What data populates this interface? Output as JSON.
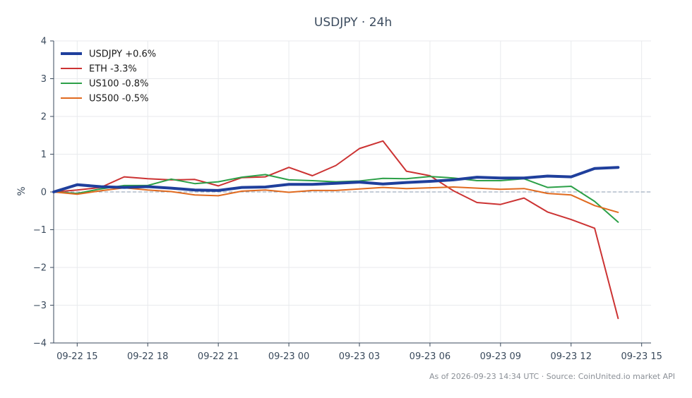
{
  "chart_data": {
    "type": "line",
    "title": "USDJPY · 24h",
    "ylabel": "%",
    "xlabel": "",
    "ylim": [
      -4,
      4
    ],
    "yticks": [
      4,
      3,
      2,
      1,
      0,
      -1,
      -2,
      -3,
      -4
    ],
    "ytick_labels": [
      "4",
      "3",
      "2",
      "1",
      "0",
      "−1",
      "−2",
      "−3",
      "−4"
    ],
    "xlim": [
      14.0,
      39.4
    ],
    "xticks": [
      15,
      18,
      21,
      24,
      27,
      30,
      33,
      36,
      39
    ],
    "xtick_labels": [
      "09-22 15",
      "09-22 18",
      "09-22 21",
      "09-23 00",
      "09-23 03",
      "09-23 06",
      "09-23 09",
      "09-23 12",
      "09-23 15"
    ],
    "grid": true,
    "zero_line": true,
    "legend_position": "top-left",
    "x": [
      14.0,
      15.0,
      16.0,
      17.0,
      18.0,
      19.0,
      20.0,
      21.0,
      22.0,
      23.0,
      24.0,
      25.0,
      26.0,
      27.0,
      28.0,
      29.0,
      30.0,
      31.0,
      32.0,
      33.0,
      34.0,
      35.0,
      36.0,
      37.0,
      38.0
    ],
    "series": [
      {
        "name": "USDJPY +0.6%",
        "color": "#1f3f9c",
        "width": 4,
        "values": [
          0.0,
          0.19,
          0.14,
          0.12,
          0.14,
          0.1,
          0.05,
          0.04,
          0.12,
          0.13,
          0.2,
          0.2,
          0.23,
          0.26,
          0.21,
          0.25,
          0.28,
          0.32,
          0.39,
          0.37,
          0.37,
          0.42,
          0.4,
          0.62,
          0.65
        ]
      },
      {
        "name": "ETH -3.3%",
        "color": "#cc3333",
        "width": 2,
        "values": [
          0.0,
          0.05,
          0.12,
          0.4,
          0.35,
          0.32,
          0.33,
          0.16,
          0.38,
          0.4,
          0.65,
          0.43,
          0.7,
          1.15,
          1.35,
          0.55,
          0.43,
          0.03,
          -0.28,
          -0.33,
          -0.16,
          -0.53,
          -0.73,
          -0.96,
          -3.35
        ]
      },
      {
        "name": "US100 -0.8%",
        "color": "#2ca048",
        "width": 2,
        "values": [
          0.0,
          -0.04,
          0.08,
          0.17,
          0.17,
          0.34,
          0.22,
          0.27,
          0.39,
          0.46,
          0.32,
          0.3,
          0.27,
          0.29,
          0.36,
          0.35,
          0.41,
          0.37,
          0.3,
          0.3,
          0.35,
          0.12,
          0.15,
          -0.25,
          -0.8
        ]
      },
      {
        "name": "US500 -0.5%",
        "color": "#e06a1f",
        "width": 2,
        "values": [
          0.0,
          -0.06,
          0.03,
          0.11,
          0.05,
          0.01,
          -0.08,
          -0.1,
          0.02,
          0.05,
          -0.01,
          0.04,
          0.04,
          0.08,
          0.12,
          0.09,
          0.11,
          0.13,
          0.1,
          0.07,
          0.09,
          -0.04,
          -0.08,
          -0.36,
          -0.54
        ]
      }
    ]
  },
  "footer": "As of 2026-09-23 14:34 UTC · Source: CoinUnited.io market API"
}
